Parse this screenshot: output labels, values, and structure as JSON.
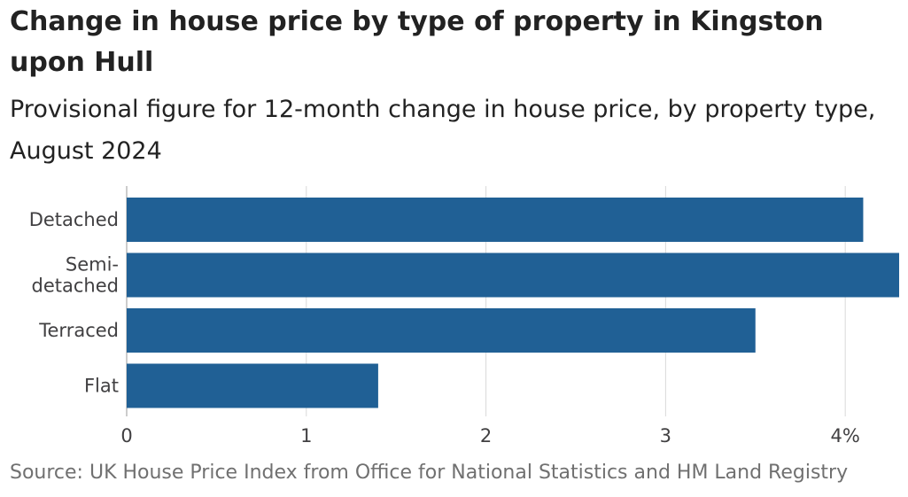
{
  "title": "Change in house price by type of property in Kingston upon Hull",
  "subtitle": "Provisional figure for 12-month change in house price, by property type, August 2024",
  "source": "Source: UK House Price Index from Office for National Statistics and HM Land Registry",
  "colors": {
    "bar": "#206095",
    "grid": "#d9d9d9",
    "axis": "#bcbcbc",
    "label": "#414042",
    "source": "#707070"
  },
  "chart_data": {
    "type": "bar",
    "orientation": "horizontal",
    "categories": [
      {
        "label_lines": [
          "Detached"
        ],
        "value": 4.1
      },
      {
        "label_lines": [
          "Semi-",
          "detached"
        ],
        "value": 4.3
      },
      {
        "label_lines": [
          "Terraced"
        ],
        "value": 3.5
      },
      {
        "label_lines": [
          "Flat"
        ],
        "value": 1.4
      }
    ],
    "x_ticks": [
      {
        "value": 0,
        "label": "0"
      },
      {
        "value": 1,
        "label": "1"
      },
      {
        "value": 2,
        "label": "2"
      },
      {
        "value": 3,
        "label": "3"
      },
      {
        "value": 4,
        "label": "4%"
      }
    ],
    "xlim": [
      0,
      4.3
    ],
    "xlabel": "",
    "ylabel": "",
    "grid": true,
    "legend": "none"
  }
}
